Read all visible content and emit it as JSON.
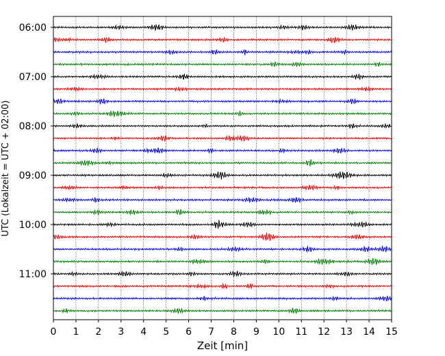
{
  "chart_data": {
    "type": "line",
    "title": "",
    "xlabel": "Zeit  [min]",
    "ylabel": "UTC (Lokalzeit = UTC + 02:00)",
    "xlim": [
      0,
      15
    ],
    "x_ticks": [
      "0",
      "1",
      "2",
      "3",
      "4",
      "5",
      "6",
      "7",
      "8",
      "9",
      "10",
      "11",
      "12",
      "13",
      "14",
      "15"
    ],
    "y_ticks": [
      "06:00",
      "07:00",
      "08:00",
      "09:00",
      "10:00",
      "11:00"
    ],
    "grid": "vertical dotted",
    "trace_colors": [
      "#000000",
      "#ff0000",
      "#0000ff",
      "#008000"
    ],
    "series": [
      {
        "start": "06:00"
      },
      {
        "start": "06:15"
      },
      {
        "start": "06:30"
      },
      {
        "start": "06:45"
      },
      {
        "start": "07:00"
      },
      {
        "start": "07:15"
      },
      {
        "start": "07:30"
      },
      {
        "start": "07:45"
      },
      {
        "start": "08:00"
      },
      {
        "start": "08:15"
      },
      {
        "start": "08:30"
      },
      {
        "start": "08:45"
      },
      {
        "start": "09:00"
      },
      {
        "start": "09:15"
      },
      {
        "start": "09:30"
      },
      {
        "start": "09:45"
      },
      {
        "start": "10:00"
      },
      {
        "start": "10:15"
      },
      {
        "start": "10:30"
      },
      {
        "start": "10:45"
      },
      {
        "start": "11:00"
      },
      {
        "start": "11:15"
      },
      {
        "start": "11:30"
      },
      {
        "start": "11:45"
      }
    ]
  }
}
